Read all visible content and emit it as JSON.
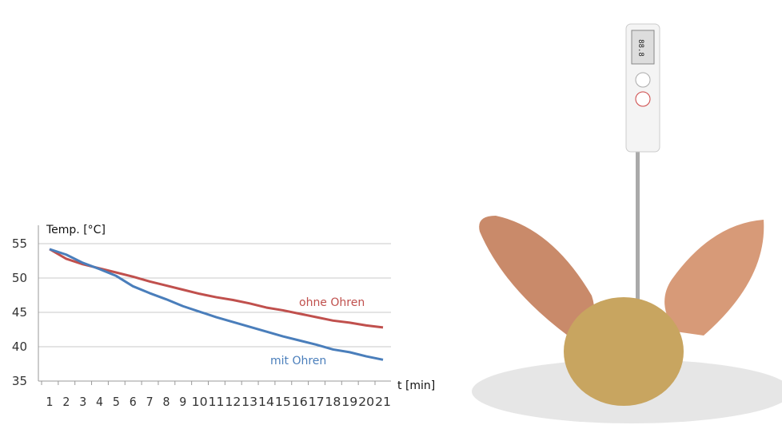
{
  "chart_data": {
    "type": "line",
    "title": "",
    "xlabel": "t [min]",
    "ylabel": "Temp. [°C]",
    "categories": [
      1,
      2,
      3,
      4,
      5,
      6,
      7,
      8,
      9,
      10,
      11,
      12,
      13,
      14,
      15,
      16,
      17,
      18,
      19,
      20,
      21
    ],
    "ylim": [
      35,
      55
    ],
    "yticks": [
      35,
      40,
      45,
      50,
      55
    ],
    "grid": true,
    "series": [
      {
        "name": "ohne Ohren",
        "color": "#c0504d",
        "values": [
          54.2,
          52.8,
          52.0,
          51.4,
          50.8,
          50.2,
          49.5,
          48.9,
          48.3,
          47.7,
          47.2,
          46.8,
          46.3,
          45.7,
          45.3,
          44.8,
          44.3,
          43.8,
          43.5,
          43.1,
          42.8
        ]
      },
      {
        "name": "mit Ohren",
        "color": "#4a7ebb",
        "values": [
          54.2,
          53.4,
          52.2,
          51.3,
          50.3,
          48.8,
          47.8,
          46.9,
          45.9,
          45.1,
          44.3,
          43.6,
          42.9,
          42.2,
          41.5,
          40.9,
          40.3,
          39.6,
          39.2,
          38.6,
          38.1
        ]
      }
    ]
  },
  "photo": {
    "thermometer_display": "88.8",
    "colors": {
      "copper": "#c98a6a",
      "potato": "#c8a560",
      "plate": "#e8e8e8"
    }
  }
}
